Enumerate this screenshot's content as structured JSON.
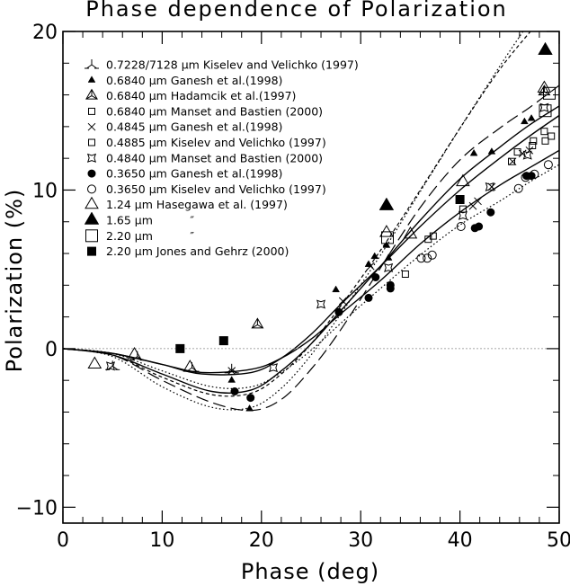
{
  "chart_data": {
    "type": "scatter",
    "title": "Phase dependence of Polarization",
    "xlabel": "Phase (deg)",
    "ylabel": "Polarization (%)",
    "xlim": [
      0,
      50
    ],
    "ylim": [
      -11,
      20
    ],
    "x_ticks": [
      "0",
      "10",
      "20",
      "30",
      "40",
      "50"
    ],
    "y_ticks": [
      "-10",
      "0",
      "10",
      "20"
    ],
    "zero_line": true,
    "legend_position": "top-left",
    "series": [
      {
        "name": "0.7228/7128 μm Kiselev and Velichko (1997)",
        "marker": "tri-star",
        "points": [
          [
            5,
            -1.1
          ],
          [
            7.5,
            -0.5
          ],
          [
            13,
            -1.2
          ],
          [
            17,
            -1.3
          ]
        ]
      },
      {
        "name": "0.6840 μm Ganesh et al.(1998)",
        "marker": "small-filled-triangle",
        "points": [
          [
            17,
            -2.0
          ],
          [
            18.8,
            -3.8
          ],
          [
            27.5,
            3.7
          ],
          [
            30.8,
            5.3
          ],
          [
            31.4,
            5.8
          ],
          [
            32.6,
            6.5
          ],
          [
            32.8,
            5.7
          ],
          [
            41.4,
            12.3
          ],
          [
            43.2,
            12.4
          ],
          [
            46.5,
            14.3
          ],
          [
            47.2,
            14.5
          ]
        ]
      },
      {
        "name": "0.6840 μm Hadamcik et al.(1997)",
        "marker": "open-triangle-star",
        "points": [
          [
            19.6,
            1.5
          ],
          [
            48.5,
            16.2
          ]
        ]
      },
      {
        "name": "0.6840 μm Manset and Bastien (2000)",
        "marker": "small-open-square",
        "points": [
          [
            34.5,
            4.7
          ],
          [
            36.8,
            6.9
          ],
          [
            37.3,
            7.1
          ],
          [
            45.8,
            12.4
          ],
          [
            47.4,
            13.1
          ],
          [
            48.5,
            13.7
          ],
          [
            49.2,
            13.4
          ]
        ]
      },
      {
        "name": "0.4845 μm Ganesh et al.(1998)",
        "marker": "cross",
        "points": [
          [
            17,
            -1.4
          ],
          [
            28.2,
            3.0
          ],
          [
            31,
            5.2
          ],
          [
            41.3,
            9.0
          ],
          [
            41.8,
            9.3
          ],
          [
            43.2,
            10.2
          ],
          [
            45.3,
            11.8
          ],
          [
            46.3,
            12.3
          ],
          [
            47.0,
            12.5
          ]
        ]
      },
      {
        "name": "0.4885 μm Kiselev and Velichko (1997)",
        "marker": "small-open-square",
        "points": [
          [
            40.3,
            8.8
          ],
          [
            45.2,
            11.8
          ],
          [
            47.3,
            12.8
          ],
          [
            48.6,
            13.1
          ]
        ]
      },
      {
        "name": "0.4840 μm Manset and Bastien (2000)",
        "marker": "open-star",
        "points": [
          [
            4.8,
            -1.1
          ],
          [
            21.2,
            -1.2
          ],
          [
            26,
            2.8
          ],
          [
            32.8,
            5.1
          ],
          [
            40.3,
            8.4
          ],
          [
            43,
            10.2
          ],
          [
            46.8,
            12.2
          ],
          [
            48.5,
            15.2
          ]
        ]
      },
      {
        "name": "0.3650 μm Ganesh et al.(1998)",
        "marker": "filled-circle",
        "points": [
          [
            17.3,
            -2.7
          ],
          [
            18.9,
            -3.1
          ],
          [
            27.8,
            2.3
          ],
          [
            30.8,
            3.2
          ],
          [
            31.5,
            4.5
          ],
          [
            33,
            3.8
          ],
          [
            33,
            4.0
          ],
          [
            41.5,
            7.6
          ],
          [
            41.9,
            7.7
          ],
          [
            43.1,
            8.6
          ],
          [
            46.7,
            10.9
          ],
          [
            47.2,
            10.9
          ]
        ]
      },
      {
        "name": "0.3650 μm Kiselev and Velichko (1997)",
        "marker": "open-circle",
        "points": [
          [
            36.1,
            5.7
          ],
          [
            36.7,
            5.7
          ],
          [
            37.2,
            5.9
          ],
          [
            40.1,
            7.7
          ],
          [
            45.9,
            10.1
          ],
          [
            46.6,
            10.8
          ],
          [
            47.5,
            11.0
          ],
          [
            48.9,
            11.6
          ]
        ]
      },
      {
        "name": "1.24 μm Hasegawa et al. (1997)",
        "marker": "open-triangle",
        "points": [
          [
            3.2,
            -1.0
          ],
          [
            7.2,
            -0.4
          ],
          [
            12.8,
            -1.2
          ],
          [
            32.6,
            7.3
          ],
          [
            35.0,
            7.2
          ],
          [
            40.3,
            10.5
          ],
          [
            48.5,
            16.4
          ]
        ]
      },
      {
        "name": "1.65 μm    ″",
        "marker": "big-filled-triangle",
        "points": [
          [
            32.6,
            9.0
          ],
          [
            48.6,
            18.8
          ]
        ]
      },
      {
        "name": "2.20 μm    ″",
        "marker": "big-open-square",
        "points": [
          [
            32.7,
            7.0
          ],
          [
            48.6,
            15.0
          ],
          [
            49.0,
            16.1
          ]
        ]
      },
      {
        "name": "2.20 μm Jones and Gehrz (2000)",
        "marker": "filled-square",
        "points": [
          [
            11.8,
            0.0
          ],
          [
            16.2,
            0.5
          ],
          [
            40,
            9.4
          ]
        ]
      }
    ],
    "curves": [
      {
        "style": "dotted",
        "points": [
          [
            0,
            0
          ],
          [
            5,
            -0.5
          ],
          [
            10,
            -2.4
          ],
          [
            15,
            -3.7
          ],
          [
            19,
            -3.7
          ],
          [
            22,
            -2.5
          ],
          [
            25,
            -0.4
          ],
          [
            28,
            2.2
          ],
          [
            32,
            5.9
          ],
          [
            36,
            9.9
          ],
          [
            40,
            13.9
          ],
          [
            44,
            17.8
          ],
          [
            47,
            20.6
          ]
        ]
      },
      {
        "style": "short-dash",
        "points": [
          [
            0,
            0
          ],
          [
            5,
            -0.4
          ],
          [
            10,
            -1.8
          ],
          [
            15,
            -2.9
          ],
          [
            19,
            -2.8
          ],
          [
            22,
            -1.6
          ],
          [
            25,
            0.3
          ],
          [
            28,
            2.7
          ],
          [
            32,
            6.2
          ],
          [
            36,
            10.0
          ],
          [
            40,
            13.9
          ],
          [
            44,
            17.6
          ],
          [
            47.5,
            20.3
          ]
        ]
      },
      {
        "style": "long-dash",
        "points": [
          [
            0,
            0
          ],
          [
            5,
            -0.4
          ],
          [
            10,
            -2.0
          ],
          [
            15,
            -3.4
          ],
          [
            19,
            -3.9
          ],
          [
            22,
            -3.2
          ],
          [
            25,
            -1.3
          ],
          [
            28,
            1.2
          ],
          [
            32,
            5.1
          ],
          [
            36,
            8.9
          ],
          [
            40,
            11.9
          ],
          [
            44,
            13.9
          ],
          [
            47,
            15.2
          ],
          [
            50,
            16.6
          ]
        ]
      },
      {
        "style": "solid",
        "points": [
          [
            0,
            0
          ],
          [
            5,
            -0.4
          ],
          [
            10,
            -1.6
          ],
          [
            15,
            -2.7
          ],
          [
            19,
            -2.6
          ],
          [
            22,
            -1.4
          ],
          [
            25,
            0.3
          ],
          [
            28,
            2.4
          ],
          [
            32,
            5.2
          ],
          [
            36,
            8.1
          ],
          [
            40,
            10.7
          ],
          [
            44,
            12.7
          ],
          [
            47,
            14.1
          ],
          [
            50,
            15.3
          ]
        ]
      },
      {
        "style": "solid",
        "points": [
          [
            0,
            0
          ],
          [
            5,
            -0.3
          ],
          [
            10,
            -1.0
          ],
          [
            14,
            -1.6
          ],
          [
            19,
            -1.5
          ],
          [
            22,
            -0.6
          ],
          [
            25,
            0.9
          ],
          [
            28,
            2.8
          ],
          [
            32,
            5.2
          ],
          [
            36,
            7.7
          ],
          [
            40,
            10.0
          ],
          [
            44,
            12.0
          ],
          [
            47,
            13.4
          ],
          [
            50,
            14.7
          ]
        ]
      },
      {
        "style": "solid",
        "points": [
          [
            0,
            0
          ],
          [
            5,
            -0.3
          ],
          [
            10,
            -1.0
          ],
          [
            14,
            -1.5
          ],
          [
            19,
            -1.3
          ],
          [
            22,
            -0.6
          ],
          [
            25,
            0.6
          ],
          [
            28,
            2.2
          ],
          [
            32,
            4.3
          ],
          [
            36,
            6.6
          ],
          [
            40,
            8.6
          ],
          [
            44,
            10.3
          ],
          [
            47,
            11.4
          ],
          [
            50,
            12.5
          ]
        ]
      },
      {
        "style": "dotted",
        "points": [
          [
            0,
            0
          ],
          [
            5,
            -0.3
          ],
          [
            10,
            -1.4
          ],
          [
            15,
            -2.4
          ],
          [
            19,
            -2.4
          ],
          [
            22,
            -1.5
          ],
          [
            25,
            -0.1
          ],
          [
            28,
            1.6
          ],
          [
            32,
            3.8
          ],
          [
            36,
            5.9
          ],
          [
            40,
            7.8
          ],
          [
            44,
            9.3
          ],
          [
            47,
            10.5
          ],
          [
            50,
            11.6
          ]
        ]
      }
    ]
  }
}
